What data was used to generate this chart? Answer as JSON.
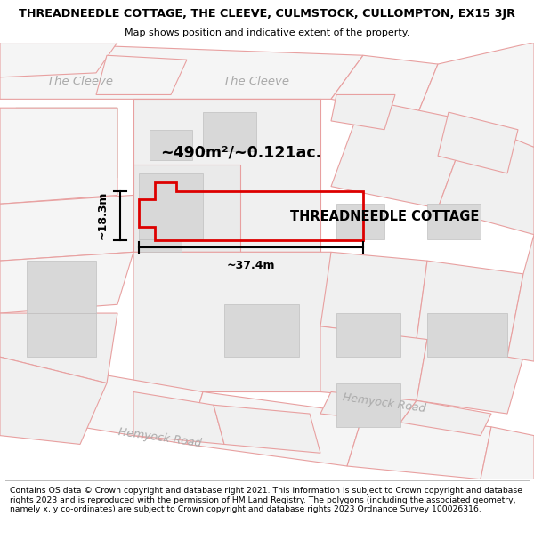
{
  "title_line1": "THREADNEEDLE COTTAGE, THE CLEEVE, CULMSTOCK, CULLOMPTON, EX15 3JR",
  "title_line2": "Map shows position and indicative extent of the property.",
  "footer_text": "Contains OS data © Crown copyright and database right 2021. This information is subject to Crown copyright and database rights 2023 and is reproduced with the permission of HM Land Registry. The polygons (including the associated geometry, namely x, y co-ordinates) are subject to Crown copyright and database rights 2023 Ordnance Survey 100026316.",
  "property_label": "THREADNEEDLE COTTAGE",
  "area_label": "~490m²/~0.121ac.",
  "width_label": "~37.4m",
  "height_label": "~18.3m",
  "map_edge_color": "#e8a0a0",
  "building_fill": "#d8d8d8",
  "building_edge": "#c0c0c0",
  "green_fill": "#e8f0e8",
  "road_label_color": "#aaaaaa",
  "prop_edge_color": "#dd0000"
}
